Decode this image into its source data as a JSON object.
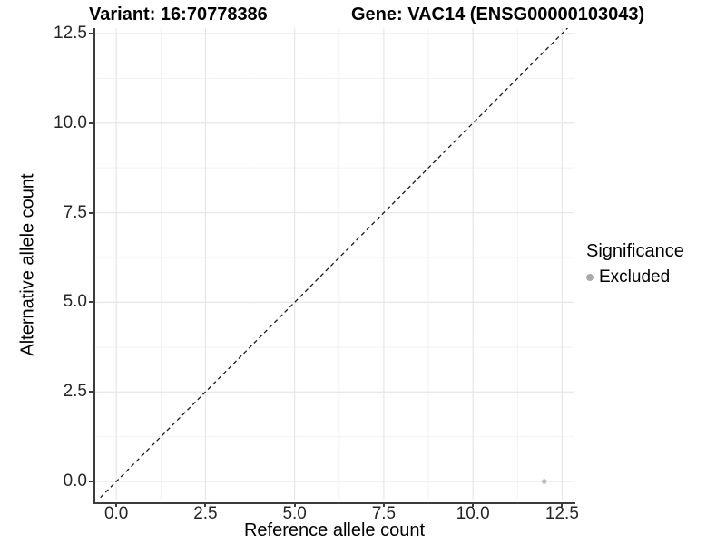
{
  "chart_data": {
    "type": "scatter",
    "title_left": "Variant: 16:70778386",
    "title_right": "Gene: VAC14 (ENSG00000103043)",
    "xlabel": "Reference allele count",
    "ylabel": "Alternative allele count",
    "x_tick_values": [
      0,
      2.5,
      5,
      7.5,
      10,
      12.5
    ],
    "x_tick_labels": [
      "0.0",
      "2.5",
      "5.0",
      "7.5",
      "10.0",
      "12.5"
    ],
    "y_tick_values": [
      0,
      2.5,
      5,
      7.5,
      10,
      12.5
    ],
    "y_tick_labels": [
      "0.0",
      "2.5",
      "5.0",
      "7.5",
      "10.0",
      "12.5"
    ],
    "minor_tick_values": [
      1.25,
      3.75,
      6.25,
      8.75,
      11.25
    ],
    "xlim": [
      -0.59,
      12.82
    ],
    "ylim": [
      -0.53,
      12.65
    ],
    "grid": "major+minor",
    "reference_line": {
      "type": "identity y=x",
      "style": "dashed",
      "color": "#1a1a1a"
    },
    "series": [
      {
        "name": "Excluded",
        "color": "#bebebe",
        "points": [
          {
            "x": 12,
            "y": 0
          }
        ]
      }
    ],
    "legend": {
      "title": "Significance",
      "position": "right",
      "entries": [
        {
          "label": "Excluded",
          "color": "#aaaaaa"
        }
      ]
    }
  },
  "colors": {
    "grid_major": "#e6e6e6",
    "grid_minor": "#f2f2f2",
    "axis_line": "#3c3c3c",
    "tick_label": "#262626",
    "background": "#ffffff"
  }
}
